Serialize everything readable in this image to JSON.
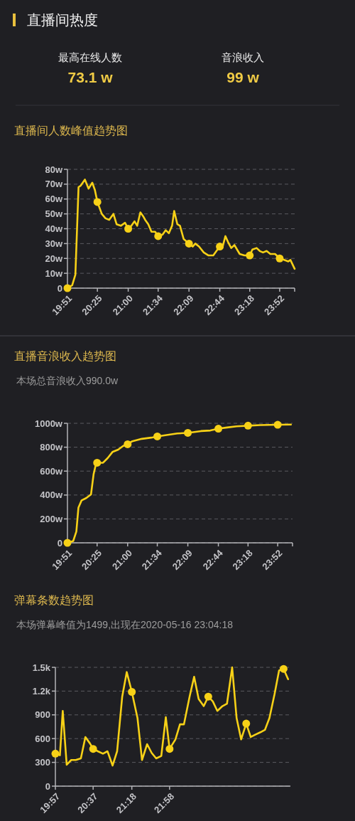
{
  "chart_data": [
    {
      "type": "other",
      "title": "直播间热度",
      "annotations": [
        "最高在线人数",
        "73.1 w",
        "音浪收入",
        "99 w"
      ]
    },
    {
      "type": "line",
      "title": "直播间人数峰值趋势图",
      "xlim": [
        19.85,
        24.15
      ],
      "xticks": [
        {
          "value": 19.85,
          "label": "19:51"
        },
        {
          "value": 20.4167,
          "label": "20:25"
        },
        {
          "value": 21.0,
          "label": "21:00"
        },
        {
          "value": 21.5667,
          "label": "21:34"
        },
        {
          "value": 22.15,
          "label": "22:09"
        },
        {
          "value": 22.7333,
          "label": "22:44"
        },
        {
          "value": 23.3,
          "label": "23:18"
        },
        {
          "value": 23.8667,
          "label": "23:52"
        },
        {
          "value": 24.15,
          "label": null
        }
      ],
      "ylim": [
        0,
        80
      ],
      "yticks": [
        0,
        {
          "value": 10,
          "label": "10w"
        },
        {
          "value": 20,
          "label": "20w"
        },
        {
          "value": 30,
          "label": "30w"
        },
        {
          "value": 40,
          "label": "40w"
        },
        {
          "value": 50,
          "label": "50w"
        },
        {
          "value": 60,
          "label": "60w"
        },
        {
          "value": 70,
          "label": "70w"
        },
        {
          "value": 80,
          "label": "80w"
        }
      ],
      "grid": "y",
      "series": [
        {
          "type": "line",
          "color": "#f7d117",
          "x": [
            19.85,
            19.94,
            20.0,
            20.06,
            20.1,
            20.18,
            20.25,
            20.32,
            20.37,
            20.4167,
            20.5,
            20.57,
            20.64,
            20.72,
            20.78,
            20.86,
            20.94,
            21.0,
            21.06,
            21.12,
            21.17,
            21.23,
            21.29,
            21.32,
            21.38,
            21.44,
            21.51,
            21.5667,
            21.65,
            21.71,
            21.77,
            21.83,
            21.87,
            21.93,
            21.98,
            22.05,
            22.15,
            22.22,
            22.27,
            22.34,
            22.43,
            22.52,
            22.61,
            22.67,
            22.7333,
            22.78,
            22.84,
            22.89,
            22.95,
            23.01,
            23.06,
            23.11,
            23.2,
            23.3,
            23.35,
            23.43,
            23.49,
            23.55,
            23.62,
            23.69,
            23.78,
            23.8667,
            23.95,
            24.03,
            24.07,
            24.15
          ],
          "values": [
            0,
            2,
            9,
            68,
            69,
            73.1,
            67,
            71,
            66,
            58,
            50,
            47,
            46,
            50,
            43,
            42,
            44,
            40,
            42,
            45,
            42,
            51,
            48,
            46,
            43,
            38,
            38,
            35,
            36,
            39,
            37,
            42,
            52,
            43,
            42,
            33,
            30,
            28,
            30,
            28,
            24,
            22,
            22,
            25,
            28,
            27,
            35,
            31,
            27,
            29,
            26,
            23,
            22,
            22,
            26,
            27,
            25,
            24,
            25,
            23,
            23,
            20,
            19,
            18,
            19,
            13
          ]
        },
        {
          "type": "scatter",
          "marker": "circle",
          "color": "#f7d117",
          "x": [
            19.85,
            20.4167,
            21.0,
            21.5667,
            22.15,
            22.7333,
            23.3,
            23.8667
          ],
          "values": [
            0,
            58,
            40,
            35,
            30,
            28,
            22,
            20
          ]
        }
      ]
    },
    {
      "type": "line",
      "title": "直播音浪收入趋势图",
      "subtitle": "本场总音浪收入990.0w",
      "xlim": [
        19.85,
        24.15
      ],
      "xticks": [
        {
          "value": 19.85,
          "label": "19:51"
        },
        {
          "value": 20.4167,
          "label": "20:25"
        },
        {
          "value": 21.0,
          "label": "21:00"
        },
        {
          "value": 21.5667,
          "label": "21:34"
        },
        {
          "value": 22.15,
          "label": "22:09"
        },
        {
          "value": 22.7333,
          "label": "22:44"
        },
        {
          "value": 23.3,
          "label": "23:18"
        },
        {
          "value": 23.8667,
          "label": "23:52"
        },
        {
          "value": 24.15,
          "label": null
        }
      ],
      "ylim": [
        0,
        1000
      ],
      "yticks": [
        0,
        {
          "value": 200,
          "label": "200w"
        },
        {
          "value": 400,
          "label": "400w"
        },
        {
          "value": 600,
          "label": "600w"
        },
        {
          "value": 800,
          "label": "800w"
        },
        {
          "value": 1000,
          "label": "1000w"
        }
      ],
      "grid": "y",
      "series": [
        {
          "type": "line",
          "color": "#f7d117",
          "x": [
            19.85,
            19.96,
            20.02,
            20.06,
            20.12,
            20.21,
            20.3,
            20.35,
            20.39,
            20.4167,
            20.53,
            20.62,
            20.71,
            20.82,
            20.91,
            21.0,
            21.09,
            21.27,
            21.45,
            21.5667,
            21.72,
            21.95,
            22.15,
            22.4,
            22.58,
            22.7333,
            22.9,
            23.08,
            23.3,
            23.53,
            23.8667,
            24.12
          ],
          "values": [
            0,
            15,
            95,
            295,
            355,
            375,
            405,
            575,
            650,
            670,
            670,
            710,
            760,
            780,
            810,
            825,
            850,
            870,
            880,
            890,
            900,
            915,
            920,
            935,
            940,
            955,
            965,
            975,
            980,
            985,
            988,
            990
          ]
        },
        {
          "type": "scatter",
          "marker": "circle",
          "color": "#f7d117",
          "x": [
            19.85,
            20.4167,
            21.0,
            21.5667,
            22.15,
            22.7333,
            23.3,
            23.8667
          ],
          "values": [
            0,
            670,
            825,
            890,
            920,
            955,
            980,
            988
          ]
        }
      ]
    },
    {
      "type": "line",
      "title": "弹幕条数趋势图",
      "subtitle": "本场弹幕峰值为1499,出现在2020-05-16 23:04:18",
      "xlim": [
        19.95,
        24.1
      ],
      "xticks": [
        {
          "value": 19.95,
          "label": "19:57"
        },
        {
          "value": 20.6167,
          "label": "20:37"
        },
        {
          "value": 21.3,
          "label": "21:18"
        },
        {
          "value": 21.9667,
          "label": "21:58"
        }
      ],
      "ylim": [
        0,
        1500
      ],
      "yticks": [
        0,
        300,
        600,
        900,
        {
          "value": 1200,
          "label": "1.2k"
        },
        {
          "value": 1500,
          "label": "1.5k"
        }
      ],
      "grid": "y",
      "series": [
        {
          "type": "line",
          "color": "#f7d117",
          "x": [
            19.95,
            20.03,
            20.08,
            20.15,
            20.23,
            20.31,
            20.4,
            20.48,
            20.56,
            20.6167,
            20.7,
            20.79,
            20.87,
            20.96,
            21.04,
            21.13,
            21.21,
            21.3,
            21.4,
            21.48,
            21.57,
            21.65,
            21.73,
            21.82,
            21.9,
            21.9667,
            22.07,
            22.15,
            22.22,
            22.32,
            22.4,
            22.48,
            22.57,
            22.65,
            22.73,
            22.81,
            22.9,
            22.98,
            23.0717,
            23.15,
            23.23,
            23.32,
            23.4,
            23.48,
            23.57,
            23.65,
            23.73,
            23.82,
            23.9,
            23.98,
            24.06
          ],
          "values": [
            410,
            390,
            950,
            270,
            330,
            330,
            350,
            620,
            540,
            470,
            440,
            410,
            440,
            260,
            440,
            1130,
            1440,
            1190,
            860,
            330,
            530,
            420,
            350,
            380,
            870,
            470,
            590,
            780,
            780,
            1130,
            1380,
            1100,
            1010,
            1130,
            1070,
            950,
            1010,
            1040,
            1499,
            860,
            590,
            790,
            620,
            650,
            680,
            710,
            860,
            1160,
            1460,
            1480,
            1350
          ]
        },
        {
          "type": "scatter",
          "marker": "circle",
          "color": "#f7d117",
          "x": [
            19.95,
            20.6167,
            21.3,
            21.9667,
            22.65,
            23.32,
            23.98
          ],
          "values": [
            410,
            470,
            1190,
            470,
            1130,
            790,
            1480
          ]
        }
      ]
    }
  ]
}
